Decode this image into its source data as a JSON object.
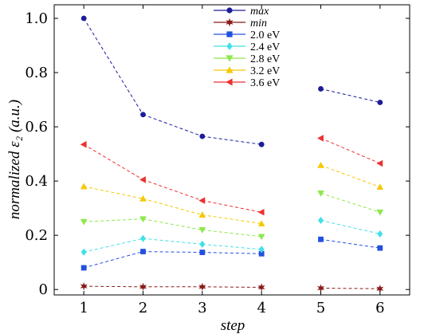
{
  "chart_data": {
    "type": "line",
    "xlabel": "step",
    "ylabel": "normalized ε₂ (a.u.)",
    "xlim": [
      0.5,
      6.5
    ],
    "ylim": [
      -0.02,
      1.05
    ],
    "x_ticks": [
      1,
      2,
      3,
      4,
      5,
      6
    ],
    "x_tick_labels": [
      "1",
      "2",
      "3",
      "4",
      "5",
      "6"
    ],
    "y_ticks": [
      0,
      0.2,
      0.4,
      0.6,
      0.8,
      1.0
    ],
    "y_tick_labels": [
      "0",
      "0.2",
      "0.4",
      "0.6",
      "0.8",
      "1.0"
    ],
    "grid": false,
    "legend_position": "top-center",
    "line_style": "dashed",
    "gap_between_x": [
      4,
      5
    ],
    "series": [
      {
        "name": "max",
        "color": "#1c1c9c",
        "marker": "circle",
        "x": [
          1,
          2,
          3,
          4,
          5,
          6
        ],
        "y": [
          1.0,
          0.645,
          0.565,
          0.535,
          0.74,
          0.69
        ]
      },
      {
        "name": "min",
        "color": "#8b1a1a",
        "marker": "star",
        "x": [
          1,
          2,
          3,
          4,
          5,
          6
        ],
        "y": [
          0.012,
          0.01,
          0.01,
          0.008,
          0.005,
          0.003
        ]
      },
      {
        "name": "2.0 eV",
        "color": "#2250e0",
        "marker": "square",
        "x": [
          1,
          2,
          3,
          4,
          5,
          6
        ],
        "y": [
          0.08,
          0.14,
          0.137,
          0.132,
          0.185,
          0.153
        ]
      },
      {
        "name": "2.4 eV",
        "color": "#40e0e8",
        "marker": "diamond",
        "x": [
          1,
          2,
          3,
          4,
          5,
          6
        ],
        "y": [
          0.138,
          0.188,
          0.167,
          0.148,
          0.255,
          0.205
        ]
      },
      {
        "name": "2.8 eV",
        "color": "#8ee84a",
        "marker": "triangle-down",
        "x": [
          1,
          2,
          3,
          4,
          5,
          6
        ],
        "y": [
          0.25,
          0.26,
          0.22,
          0.195,
          0.355,
          0.285
        ]
      },
      {
        "name": "3.2 eV",
        "color": "#f5c800",
        "marker": "triangle-up",
        "x": [
          1,
          2,
          3,
          4,
          5,
          6
        ],
        "y": [
          0.38,
          0.335,
          0.275,
          0.243,
          0.458,
          0.378
        ]
      },
      {
        "name": "3.6 eV",
        "color": "#ee3030",
        "marker": "triangle-left",
        "x": [
          1,
          2,
          3,
          4,
          5,
          6
        ],
        "y": [
          0.535,
          0.405,
          0.328,
          0.285,
          0.558,
          0.465
        ]
      }
    ]
  }
}
